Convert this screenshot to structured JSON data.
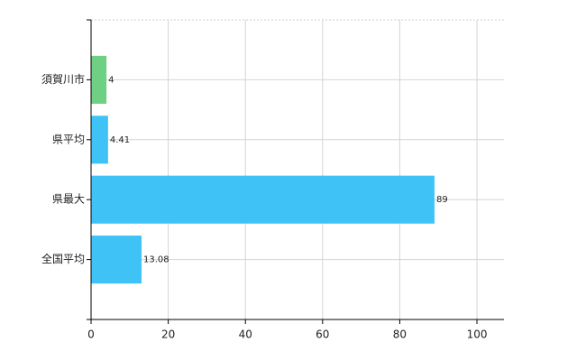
{
  "chart_data": {
    "type": "hbar",
    "categories": [
      "須賀川市",
      "県平均",
      "県最大",
      "全国平均"
    ],
    "values": [
      4,
      4.41,
      89,
      13.08
    ],
    "colors": [
      "#6fd083",
      "#3fc3f7",
      "#3fc3f7",
      "#3fc3f7"
    ],
    "xlim": [
      0,
      107
    ],
    "xticks": [
      0,
      20,
      40,
      60,
      80,
      100
    ],
    "grid": true
  }
}
